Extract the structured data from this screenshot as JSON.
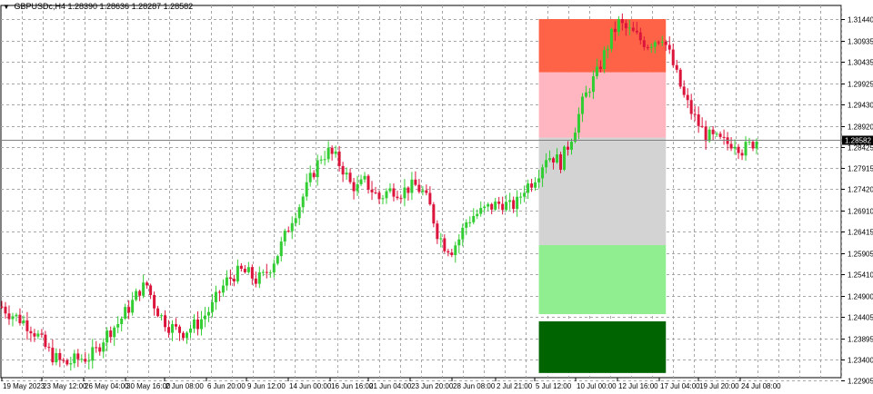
{
  "header": {
    "indicator_icon": "triangle-down-icon",
    "symbol": "GBPUSDc,H4",
    "open": "1.28390",
    "high": "1.28636",
    "low": "1.28287",
    "close": "1.28582"
  },
  "colors": {
    "background": "#ffffff",
    "grid": "#a8a8a8",
    "bull_candle": "#32cd32",
    "bear_candle": "#dc143c",
    "zone_top": "#ff6347",
    "zone_upper": "#ffb6c1",
    "zone_mid": "#d3d3d3",
    "zone_lower": "#90ee90",
    "zone_bottom": "#006400",
    "price_label_bg": "#000000"
  },
  "price_axis": {
    "ticks": [
      "1.31440",
      "1.30935",
      "1.30435",
      "1.29925",
      "1.29430",
      "1.28920",
      "1.28425",
      "1.27915",
      "1.27420",
      "1.26910",
      "1.26415",
      "1.25905",
      "1.25410",
      "1.24900",
      "1.24405",
      "1.23895",
      "1.23400",
      "1.22905"
    ],
    "current_price": "1.28582"
  },
  "time_axis": {
    "labels": [
      "19 May 2023",
      "23 May 12:00",
      "26 May 04:00",
      "30 May 16:00",
      "2 Jun 08:00",
      "6 Jun 20:00",
      "9 Jun 12:00",
      "14 Jun 00:00",
      "16 Jun 16:00",
      "21 Jun 04:00",
      "23 Jun 20:00",
      "28 Jun 08:00",
      "2 Jul 21:00",
      "5 Jul 12:00",
      "10 Jul 00:00",
      "12 Jul 16:00",
      "17 Jul 04:00",
      "19 Jul 20:00",
      "24 Jul 08:00"
    ]
  },
  "chart_data": {
    "type": "candlestick",
    "symbol": "GBPUSDc",
    "timeframe": "H4",
    "y_range": [
      1.22905,
      1.3144
    ],
    "trend_path": [
      [
        0,
        1.2465
      ],
      [
        2,
        1.245
      ],
      [
        4,
        1.244
      ],
      [
        6,
        1.243
      ],
      [
        8,
        1.2415
      ],
      [
        10,
        1.2395
      ],
      [
        12,
        1.2368
      ],
      [
        14,
        1.2348
      ],
      [
        16,
        1.2335
      ],
      [
        18,
        1.233
      ],
      [
        20,
        1.2338
      ],
      [
        22,
        1.2343
      ],
      [
        24,
        1.2345
      ],
      [
        26,
        1.236
      ],
      [
        28,
        1.239
      ],
      [
        30,
        1.241
      ],
      [
        32,
        1.2425
      ],
      [
        34,
        1.245
      ],
      [
        36,
        1.2475
      ],
      [
        38,
        1.2505
      ],
      [
        40,
        1.2515
      ],
      [
        42,
        1.247
      ],
      [
        44,
        1.244
      ],
      [
        46,
        1.242
      ],
      [
        48,
        1.241
      ],
      [
        50,
        1.2405
      ],
      [
        52,
        1.2415
      ],
      [
        54,
        1.2425
      ],
      [
        56,
        1.2445
      ],
      [
        58,
        1.2465
      ],
      [
        60,
        1.25
      ],
      [
        62,
        1.2525
      ],
      [
        64,
        1.254
      ],
      [
        66,
        1.2548
      ],
      [
        68,
        1.2542
      ],
      [
        70,
        1.2528
      ],
      [
        72,
        1.2535
      ],
      [
        74,
        1.256
      ],
      [
        76,
        1.259
      ],
      [
        78,
        1.263
      ],
      [
        80,
        1.2675
      ],
      [
        82,
        1.2705
      ],
      [
        84,
        1.2745
      ],
      [
        86,
        1.2785
      ],
      [
        88,
        1.282
      ],
      [
        90,
        1.283
      ],
      [
        92,
        1.2815
      ],
      [
        94,
        1.279
      ],
      [
        96,
        1.2755
      ],
      [
        98,
        1.2745
      ],
      [
        100,
        1.276
      ],
      [
        102,
        1.274
      ],
      [
        104,
        1.272
      ],
      [
        106,
        1.2735
      ],
      [
        108,
        1.2742
      ],
      [
        110,
        1.2735
      ],
      [
        112,
        1.2745
      ],
      [
        114,
        1.275
      ],
      [
        116,
        1.2735
      ],
      [
        118,
        1.27
      ],
      [
        120,
        1.264
      ],
      [
        122,
        1.261
      ],
      [
        124,
        1.26
      ],
      [
        126,
        1.2625
      ],
      [
        128,
        1.2665
      ],
      [
        130,
        1.268
      ],
      [
        132,
        1.2688
      ],
      [
        134,
        1.2698
      ],
      [
        136,
        1.2705
      ],
      [
        138,
        1.271
      ],
      [
        140,
        1.27
      ],
      [
        142,
        1.271
      ],
      [
        144,
        1.2745
      ],
      [
        146,
        1.276
      ],
      [
        148,
        1.2785
      ],
      [
        150,
        1.282
      ],
      [
        152,
        1.2818
      ],
      [
        154,
        1.2805
      ],
      [
        156,
        1.2845
      ],
      [
        158,
        1.289
      ],
      [
        160,
        1.2945
      ],
      [
        162,
        1.2985
      ],
      [
        164,
        1.3015
      ],
      [
        166,
        1.306
      ],
      [
        168,
        1.3105
      ],
      [
        170,
        1.3135
      ],
      [
        172,
        1.312
      ],
      [
        174,
        1.311
      ],
      [
        176,
        1.3095
      ],
      [
        178,
        1.3085
      ],
      [
        180,
        1.3095
      ],
      [
        182,
        1.3105
      ],
      [
        184,
        1.306
      ],
      [
        186,
        1.301
      ],
      [
        188,
        1.296
      ],
      [
        190,
        1.2925
      ],
      [
        192,
        1.2895
      ],
      [
        194,
        1.287
      ],
      [
        196,
        1.2862
      ],
      [
        198,
        1.2855
      ],
      [
        200,
        1.285
      ],
      [
        202,
        1.2855
      ],
      [
        204,
        1.2835
      ],
      [
        206,
        1.2845
      ],
      [
        208,
        1.2858
      ]
    ],
    "zones": [
      {
        "name": "zone-top",
        "color_key": "zone_top",
        "from_index": 148,
        "to_index": 183,
        "y_top": 1.3144,
        "y_bottom": 1.3018
      },
      {
        "name": "zone-upper",
        "color_key": "zone_upper",
        "from_index": 148,
        "to_index": 183,
        "y_top": 1.3018,
        "y_bottom": 1.2864
      },
      {
        "name": "zone-mid",
        "color_key": "zone_mid",
        "from_index": 148,
        "to_index": 183,
        "y_top": 1.2864,
        "y_bottom": 1.261
      },
      {
        "name": "zone-lower",
        "color_key": "zone_lower",
        "from_index": 148,
        "to_index": 183,
        "y_top": 1.261,
        "y_bottom": 1.2447
      },
      {
        "name": "zone-bottom",
        "color_key": "zone_bottom",
        "from_index": 148,
        "to_index": 183,
        "y_top": 1.243,
        "y_bottom": 1.2308
      }
    ]
  }
}
